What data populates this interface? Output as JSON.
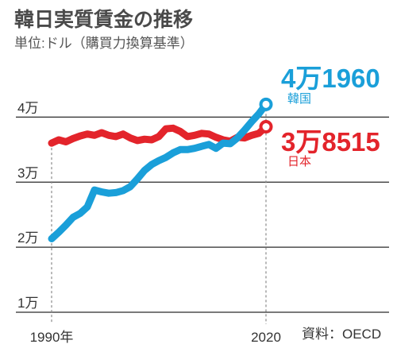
{
  "chart_data": {
    "type": "line",
    "title": "韓日実質賃金の推移",
    "subtitle": "単位:ドル（購買力換算基準）",
    "source": "資料：OECD",
    "x": [
      1990,
      1991,
      1992,
      1993,
      1994,
      1995,
      1996,
      1997,
      1998,
      1999,
      2000,
      2001,
      2002,
      2003,
      2004,
      2005,
      2006,
      2007,
      2008,
      2009,
      2010,
      2011,
      2012,
      2013,
      2014,
      2015,
      2016,
      2017,
      2018,
      2019,
      2020
    ],
    "xlim": [
      1990,
      2020
    ],
    "ylim": [
      10000,
      42000
    ],
    "grid": true,
    "x_ticks": [
      {
        "value": 1990,
        "label": "1990年"
      },
      {
        "value": 2020,
        "label": "2020"
      }
    ],
    "y_ticks": [
      {
        "value": 40000,
        "label": "4万"
      },
      {
        "value": 30000,
        "label": "3万"
      },
      {
        "value": 20000,
        "label": "2万"
      },
      {
        "value": 10000,
        "label": "1万"
      }
    ],
    "series": [
      {
        "name": "日本",
        "color": "#e3242b",
        "end_label": "3万8515",
        "values": [
          36000,
          36500,
          36200,
          36700,
          37100,
          37400,
          37200,
          37600,
          37200,
          37000,
          37400,
          36800,
          36400,
          36600,
          36500,
          37000,
          38200,
          38300,
          37800,
          37000,
          37200,
          37500,
          37400,
          36900,
          36500,
          36300,
          36900,
          36800,
          37200,
          37500,
          38515
        ]
      },
      {
        "name": "韓国",
        "color": "#1a9fd9",
        "end_label": "4万1960",
        "values": [
          21300,
          22300,
          23400,
          24600,
          25200,
          26200,
          28800,
          28500,
          28300,
          28400,
          28700,
          29300,
          30500,
          31800,
          32700,
          33300,
          33800,
          34500,
          35000,
          35000,
          35200,
          35500,
          35800,
          35200,
          36000,
          35900,
          36800,
          38000,
          39300,
          40500,
          41960
        ]
      }
    ]
  }
}
